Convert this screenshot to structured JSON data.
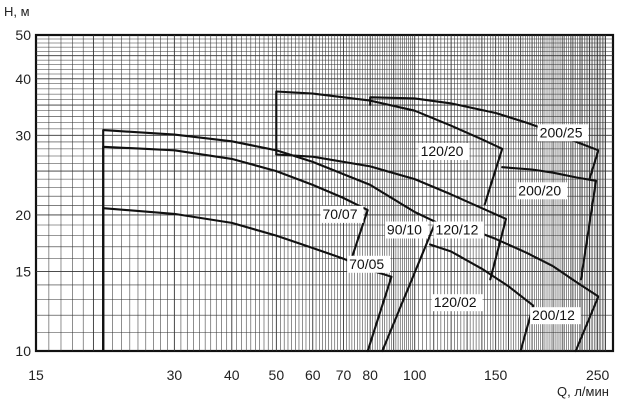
{
  "chart_data": {
    "type": "line",
    "title": "",
    "xlabel": "Q, л/мин",
    "ylabel": "H, м",
    "x_scale": "log",
    "y_scale": "log",
    "xlim": [
      15,
      270
    ],
    "ylim": [
      10,
      50
    ],
    "x_ticks": [
      15,
      30,
      40,
      50,
      60,
      70,
      80,
      100,
      150,
      250
    ],
    "y_ticks": [
      10,
      15,
      20,
      30,
      40,
      50
    ],
    "grid": true,
    "series": [
      {
        "name": "70/05",
        "curve": [
          [
            21,
            20.7
          ],
          [
            30,
            20.1
          ],
          [
            40,
            19.2
          ],
          [
            50,
            18.0
          ],
          [
            60,
            16.9
          ],
          [
            70,
            16.0
          ],
          [
            80,
            15.1
          ],
          [
            89,
            14.6
          ]
        ],
        "drop": [
          [
            89,
            14.6
          ],
          [
            79,
            10
          ]
        ],
        "start_h": 10
      },
      {
        "name": "70/07",
        "curve": [
          [
            21,
            28.3
          ],
          [
            30,
            27.8
          ],
          [
            40,
            26.6
          ],
          [
            50,
            25.0
          ],
          [
            60,
            23.3
          ],
          [
            70,
            21.8
          ],
          [
            79,
            20.5
          ]
        ],
        "drop": [
          [
            79,
            20.5
          ],
          [
            73,
            16.1
          ]
        ],
        "start_h": 10
      },
      {
        "name": "90/10",
        "curve": [
          [
            21,
            30.8
          ],
          [
            30,
            30.1
          ],
          [
            40,
            29.1
          ],
          [
            50,
            27.8
          ],
          [
            60,
            26.2
          ],
          [
            80,
            23.3
          ],
          [
            100,
            20.3
          ],
          [
            111,
            19.3
          ]
        ],
        "drop": [
          [
            111,
            19.3
          ],
          [
            85,
            10
          ]
        ],
        "start_h": 10
      },
      {
        "name": "120/12",
        "curve": [
          [
            50,
            27.2
          ],
          [
            60,
            26.9
          ],
          [
            80,
            25.6
          ],
          [
            100,
            24.0
          ],
          [
            120,
            22.2
          ],
          [
            140,
            20.7
          ],
          [
            158,
            19.6
          ]
        ],
        "drop": [
          [
            158,
            19.6
          ],
          [
            146,
            14.4
          ]
        ],
        "start_h": 27.2
      },
      {
        "name": "120/20",
        "curve": [
          [
            50,
            37.5
          ],
          [
            60,
            37.1
          ],
          [
            80,
            35.8
          ],
          [
            100,
            34.0
          ],
          [
            120,
            31.5
          ],
          [
            140,
            29.4
          ],
          [
            155,
            28.0
          ]
        ],
        "drop": [
          [
            155,
            28.0
          ],
          [
            142,
            21.1
          ]
        ],
        "start_h": 27.2
      },
      {
        "name": "120/02",
        "curve": [
          [
            108,
            17.2
          ],
          [
            120,
            16.6
          ],
          [
            140,
            15.2
          ],
          [
            160,
            13.9
          ],
          [
            181,
            12.6
          ]
        ],
        "drop": [
          [
            181,
            12.6
          ],
          [
            170,
            10
          ]
        ],
        "start_h": 17.2
      },
      {
        "name": "200/12",
        "curve": [
          [
            125,
            19.0
          ],
          [
            150,
            17.7
          ],
          [
            175,
            16.5
          ],
          [
            200,
            15.4
          ],
          [
            225,
            14.2
          ],
          [
            251,
            13.2
          ]
        ],
        "drop": [
          [
            251,
            13.2
          ],
          [
            224,
            10
          ]
        ],
        "start_h": 19.0
      },
      {
        "name": "200/20",
        "curve": [
          [
            155,
            25.5
          ],
          [
            180,
            25.2
          ],
          [
            200,
            24.8
          ],
          [
            225,
            24.2
          ],
          [
            248,
            23.8
          ]
        ],
        "drop": [
          [
            248,
            23.8
          ],
          [
            230,
            14.4
          ]
        ],
        "start_h": 25.5
      },
      {
        "name": "200/25",
        "curve": [
          [
            80,
            36.4
          ],
          [
            100,
            36.2
          ],
          [
            120,
            35.3
          ],
          [
            150,
            33.6
          ],
          [
            175,
            32.0
          ],
          [
            200,
            30.5
          ],
          [
            225,
            29.0
          ],
          [
            251,
            27.8
          ]
        ],
        "drop": [
          [
            251,
            27.8
          ],
          [
            240,
            24.0
          ]
        ],
        "start_h": 35.0
      }
    ],
    "labels": [
      {
        "text": "70/05",
        "q": 72,
        "h": 15.2
      },
      {
        "text": "70/07",
        "q": 63,
        "h": 19.6
      },
      {
        "text": "90/10",
        "q": 87,
        "h": 18.1
      },
      {
        "text": "120/12",
        "q": 111,
        "h": 18.1
      },
      {
        "text": "120/20",
        "q": 103,
        "h": 27.0
      },
      {
        "text": "120/02",
        "q": 110,
        "h": 12.5
      },
      {
        "text": "200/12",
        "q": 180,
        "h": 11.7
      },
      {
        "text": "200/20",
        "q": 168,
        "h": 22.1
      },
      {
        "text": "200/25",
        "q": 187,
        "h": 29.7
      }
    ]
  }
}
